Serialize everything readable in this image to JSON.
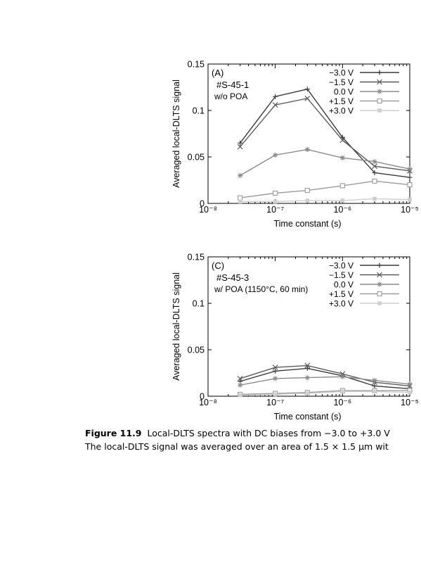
{
  "chart_data": [
    {
      "type": "line",
      "panel_label": "(A)",
      "sample_id": "#S-45-1",
      "condition": "w/o POA",
      "xlabel": "Time constant (s)",
      "ylabel": "Averaged local-DLTS signal",
      "xscale": "log",
      "xlim": [
        1e-08,
        1e-05
      ],
      "ylim": [
        0,
        0.15
      ],
      "xticks": [
        "10⁻⁸",
        "10⁻⁷",
        "10⁻⁶",
        "10⁻⁵"
      ],
      "yticks": [
        "0",
        "0.05",
        "0.1",
        "0.15"
      ],
      "legend_position": "top-right",
      "x": [
        3e-08,
        1e-07,
        3e-07,
        1e-06,
        3e-06,
        1e-05
      ],
      "series": [
        {
          "name": "−3.0 V",
          "marker": "plus",
          "color": "#3a3a3a",
          "values": [
            0.065,
            0.115,
            0.123,
            0.071,
            0.033,
            0.028
          ]
        },
        {
          "name": "−1.5 V",
          "marker": "x",
          "color": "#5a5a5a",
          "values": [
            0.061,
            0.106,
            0.113,
            0.068,
            0.04,
            0.035
          ]
        },
        {
          "name": "0.0 V",
          "marker": "star",
          "color": "#8a8a8a",
          "values": [
            0.03,
            0.052,
            0.058,
            0.049,
            0.045,
            0.037
          ]
        },
        {
          "name": "+1.5 V",
          "marker": "square",
          "color": "#9a9a9a",
          "values": [
            0.006,
            0.011,
            0.014,
            0.019,
            0.024,
            0.02
          ]
        },
        {
          "name": "+3.0 V",
          "marker": "fsquare",
          "color": "#cfcfcf",
          "values": [
            0.002,
            0.002,
            0.003,
            0.003,
            0.005,
            0.004
          ]
        }
      ]
    },
    {
      "type": "line",
      "panel_label": "(C)",
      "sample_id": "#S-45-3",
      "condition": "w/ POA (1150°C, 60 min)",
      "xlabel": "Time constant (s)",
      "ylabel": "Averaged local-DLTS signal",
      "xscale": "log",
      "xlim": [
        1e-08,
        1e-05
      ],
      "ylim": [
        0,
        0.15
      ],
      "xticks": [
        "10⁻⁸",
        "10⁻⁷",
        "10⁻⁶",
        "10⁻⁵"
      ],
      "yticks": [
        "0",
        "0.05",
        "0.1",
        "0.15"
      ],
      "legend_position": "top-right",
      "x": [
        3e-08,
        1e-07,
        3e-07,
        1e-06,
        3e-06,
        1e-05
      ],
      "series": [
        {
          "name": "−3.0 V",
          "marker": "plus",
          "color": "#3a3a3a",
          "values": [
            0.016,
            0.027,
            0.03,
            0.022,
            0.011,
            0.008
          ]
        },
        {
          "name": "−1.5 V",
          "marker": "x",
          "color": "#5a5a5a",
          "values": [
            0.019,
            0.031,
            0.033,
            0.024,
            0.015,
            0.011
          ]
        },
        {
          "name": "0.0 V",
          "marker": "star",
          "color": "#8a8a8a",
          "values": [
            0.012,
            0.019,
            0.02,
            0.021,
            0.017,
            0.013
          ]
        },
        {
          "name": "+1.5 V",
          "marker": "square",
          "color": "#9a9a9a",
          "values": [
            0.002,
            0.003,
            0.004,
            0.006,
            0.006,
            0.006
          ]
        },
        {
          "name": "+3.0 V",
          "marker": "fsquare",
          "color": "#cfcfcf",
          "values": [
            0.001,
            0.002,
            0.003,
            0.005,
            0.005,
            0.004
          ]
        }
      ]
    }
  ],
  "caption": {
    "number": "Figure 11.9",
    "line1": "Local-DLTS spectra with DC biases from −3.0 to +3.0 V",
    "line2": "The local-DLTS signal was averaged over an area of 1.5 × 1.5 μm wit"
  }
}
